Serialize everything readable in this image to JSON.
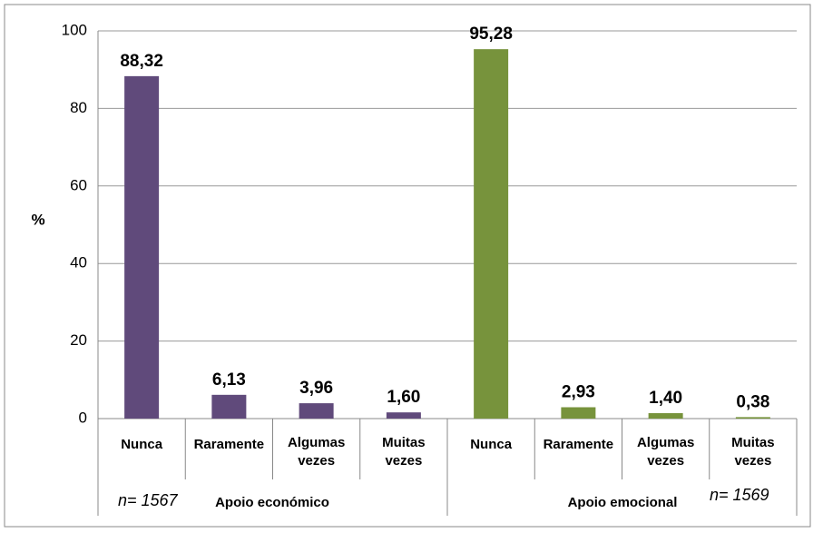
{
  "chart_data": {
    "type": "bar",
    "y_label": "%",
    "ylim": [
      0,
      100
    ],
    "yticks": [
      0,
      20,
      40,
      60,
      80,
      100
    ],
    "grid": true,
    "groups": [
      {
        "name": "Apoio económico",
        "n": "n= 1567",
        "color": "#604a7b",
        "categories": [
          "Nunca",
          "Raramente",
          "Algumas vezes",
          "Muitas vezes"
        ],
        "values": [
          88.32,
          6.13,
          3.96,
          1.6
        ],
        "value_labels": [
          "88,32",
          "6,13",
          "3,96",
          "1,60"
        ]
      },
      {
        "name": "Apoio emocional",
        "n": "n= 1569",
        "color": "#77933c",
        "categories": [
          "Nunca",
          "Raramente",
          "Algumas vezes",
          "Muitas vezes"
        ],
        "values": [
          95.28,
          2.93,
          1.4,
          0.38
        ],
        "value_labels": [
          "95,28",
          "2,93",
          "1,40",
          "0,38"
        ]
      }
    ]
  }
}
